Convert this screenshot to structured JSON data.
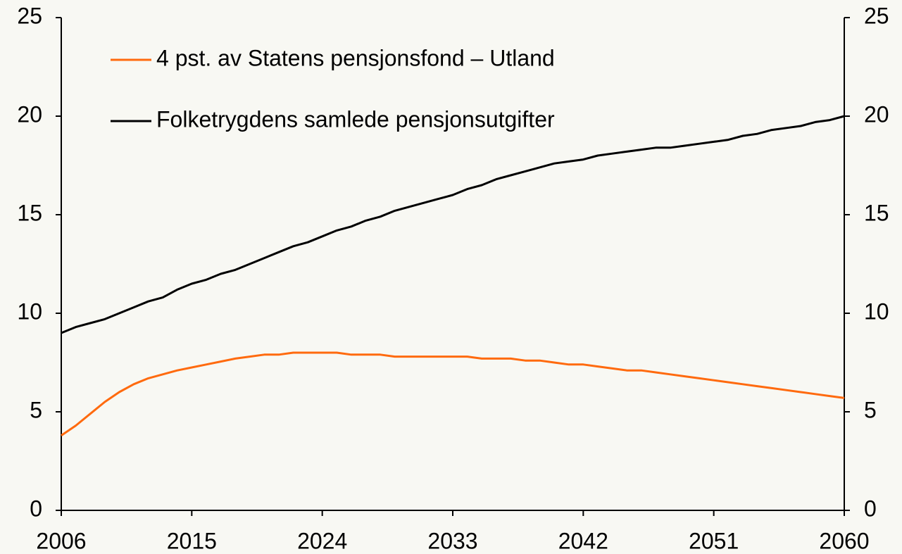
{
  "chart_data": {
    "type": "line",
    "x": [
      2006,
      2007,
      2008,
      2009,
      2010,
      2011,
      2012,
      2013,
      2014,
      2015,
      2016,
      2017,
      2018,
      2019,
      2020,
      2021,
      2022,
      2023,
      2024,
      2025,
      2026,
      2027,
      2028,
      2029,
      2030,
      2031,
      2032,
      2033,
      2034,
      2035,
      2036,
      2037,
      2038,
      2039,
      2040,
      2041,
      2042,
      2043,
      2044,
      2045,
      2046,
      2047,
      2048,
      2049,
      2050,
      2051,
      2052,
      2053,
      2054,
      2055,
      2056,
      2057,
      2058,
      2059,
      2060
    ],
    "series": [
      {
        "name": "4 pst. av Statens pensjonsfond – Utland",
        "color": "#ff6a0e",
        "values": [
          3.8,
          4.3,
          4.9,
          5.5,
          6.0,
          6.4,
          6.7,
          6.9,
          7.1,
          7.25,
          7.4,
          7.55,
          7.7,
          7.8,
          7.9,
          7.9,
          8.0,
          8.0,
          8.0,
          8.0,
          7.9,
          7.9,
          7.9,
          7.8,
          7.8,
          7.8,
          7.8,
          7.8,
          7.8,
          7.7,
          7.7,
          7.7,
          7.6,
          7.6,
          7.5,
          7.4,
          7.4,
          7.3,
          7.2,
          7.1,
          7.1,
          7.0,
          6.9,
          6.8,
          6.7,
          6.6,
          6.5,
          6.4,
          6.3,
          6.2,
          6.1,
          6.0,
          5.9,
          5.8,
          5.7
        ]
      },
      {
        "name": "Folketrygdens samlede pensjonsutgifter",
        "color": "#000000",
        "values": [
          9.0,
          9.3,
          9.5,
          9.7,
          10.0,
          10.3,
          10.6,
          10.8,
          11.2,
          11.5,
          11.7,
          12.0,
          12.2,
          12.5,
          12.8,
          13.1,
          13.4,
          13.6,
          13.9,
          14.2,
          14.4,
          14.7,
          14.9,
          15.2,
          15.4,
          15.6,
          15.8,
          16.0,
          16.3,
          16.5,
          16.8,
          17.0,
          17.2,
          17.4,
          17.6,
          17.7,
          17.8,
          18.0,
          18.1,
          18.2,
          18.3,
          18.4,
          18.4,
          18.5,
          18.6,
          18.7,
          18.8,
          19.0,
          19.1,
          19.3,
          19.4,
          19.5,
          19.7,
          19.8,
          20.0
        ]
      }
    ],
    "xlim": [
      2006,
      2060
    ],
    "xticks": [
      2006,
      2015,
      2024,
      2033,
      2042,
      2051,
      2060
    ],
    "ylim": [
      0,
      25
    ],
    "yticks": [
      0,
      5,
      10,
      15,
      20,
      25
    ],
    "y2lim": [
      0,
      25
    ],
    "y2ticks": [
      0,
      5,
      10,
      15,
      20,
      25
    ],
    "legend": "upper left"
  }
}
